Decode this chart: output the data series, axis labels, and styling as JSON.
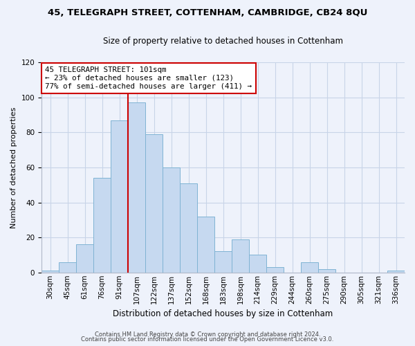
{
  "title": "45, TELEGRAPH STREET, COTTENHAM, CAMBRIDGE, CB24 8QU",
  "subtitle": "Size of property relative to detached houses in Cottenham",
  "xlabel": "Distribution of detached houses by size in Cottenham",
  "ylabel": "Number of detached properties",
  "bar_labels": [
    "30sqm",
    "45sqm",
    "61sqm",
    "76sqm",
    "91sqm",
    "107sqm",
    "122sqm",
    "137sqm",
    "152sqm",
    "168sqm",
    "183sqm",
    "198sqm",
    "214sqm",
    "229sqm",
    "244sqm",
    "260sqm",
    "275sqm",
    "290sqm",
    "305sqm",
    "321sqm",
    "336sqm"
  ],
  "bar_values": [
    1,
    6,
    16,
    54,
    87,
    97,
    79,
    60,
    51,
    32,
    12,
    19,
    10,
    3,
    0,
    6,
    2,
    0,
    0,
    0,
    1
  ],
  "bar_color": "#c6d9f0",
  "bar_edge_color": "#7fb3d3",
  "vline_color": "#cc0000",
  "ylim": [
    0,
    120
  ],
  "yticks": [
    0,
    20,
    40,
    60,
    80,
    100,
    120
  ],
  "annotation_title": "45 TELEGRAPH STREET: 101sqm",
  "annotation_line1": "← 23% of detached houses are smaller (123)",
  "annotation_line2": "77% of semi-detached houses are larger (411) →",
  "annotation_box_color": "#ffffff",
  "annotation_box_edge": "#cc0000",
  "footer1": "Contains HM Land Registry data © Crown copyright and database right 2024.",
  "footer2": "Contains public sector information licensed under the Open Government Licence v3.0.",
  "grid_color": "#c8d4e8",
  "background_color": "#eef2fb",
  "title_fontsize": 9.5,
  "subtitle_fontsize": 8.5,
  "ylabel_fontsize": 8,
  "xlabel_fontsize": 8.5,
  "tick_fontsize": 7.5,
  "annotation_fontsize": 7.8,
  "footer_fontsize": 6.0
}
